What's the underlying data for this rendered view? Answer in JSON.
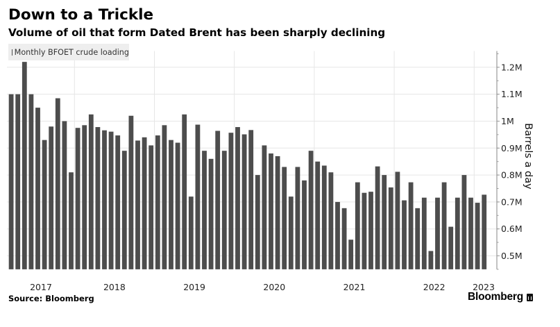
{
  "header": {
    "title": "Down to a Trickle",
    "subtitle": "Volume of oil that form Dated Brent has been sharply declining"
  },
  "footer": {
    "source": "Source: Bloomberg",
    "brand": "Bloomberg",
    "brand_icon": "bloomberg-terminal-icon"
  },
  "colors": {
    "bar": "#4d4d4d",
    "grid": "#e6e6e6",
    "axis": "#999999",
    "legend_bg": "#eeeeee"
  },
  "chart_data": {
    "type": "bar",
    "title": "Down to a Trickle",
    "subtitle": "Volume of oil that form Dated Brent has been sharply declining",
    "xlabel": "",
    "ylabel": "Barrels a day",
    "legend": {
      "position": "top-left",
      "entries": [
        "Monthly BFOET crude loading"
      ]
    },
    "series": [
      {
        "name": "Monthly BFOET crude loading",
        "values": [
          1.1,
          1.1,
          1.22,
          1.1,
          1.05,
          0.93,
          0.98,
          1.085,
          1.0,
          0.81,
          0.975,
          0.985,
          1.025,
          0.978,
          0.966,
          0.961,
          0.947,
          0.89,
          1.02,
          0.928,
          0.94,
          0.91,
          0.947,
          0.985,
          0.93,
          0.92,
          1.025,
          0.72,
          0.987,
          0.89,
          0.86,
          0.964,
          0.89,
          0.957,
          0.978,
          0.951,
          0.967,
          0.8,
          0.91,
          0.88,
          0.87,
          0.83,
          0.72,
          0.83,
          0.78,
          0.89,
          0.85,
          0.835,
          0.81,
          0.7,
          0.677,
          0.56,
          0.773,
          0.734,
          0.738,
          0.832,
          0.8,
          0.754,
          0.812,
          0.706,
          0.773,
          0.677,
          0.716,
          0.518,
          0.716,
          0.773,
          0.608,
          0.716,
          0.8,
          0.716,
          0.697,
          0.727
        ]
      }
    ],
    "unit": "M barrels a day",
    "year_labels": [
      {
        "label": "2017",
        "first_index": 0,
        "count": 10
      },
      {
        "label": "2018",
        "first_index": 10,
        "count": 12
      },
      {
        "label": "2019",
        "first_index": 22,
        "count": 12
      },
      {
        "label": "2020",
        "first_index": 34,
        "count": 12
      },
      {
        "label": "2021",
        "first_index": 46,
        "count": 12
      },
      {
        "label": "2022",
        "first_index": 58,
        "count": 12
      },
      {
        "label": "2023",
        "first_index": 70,
        "count": 2
      }
    ],
    "y_ticks": [
      {
        "value": 0.5,
        "label": "0.5M"
      },
      {
        "value": 0.6,
        "label": "0.6M"
      },
      {
        "value": 0.7,
        "label": "0.7M"
      },
      {
        "value": 0.8,
        "label": "0.8M"
      },
      {
        "value": 0.9,
        "label": "0.9M"
      },
      {
        "value": 1.0,
        "label": "1M"
      },
      {
        "value": 1.1,
        "label": "1.1M"
      },
      {
        "value": 1.2,
        "label": "1.2M"
      }
    ],
    "ylim": [
      0.45,
      1.25
    ],
    "grid": true
  }
}
